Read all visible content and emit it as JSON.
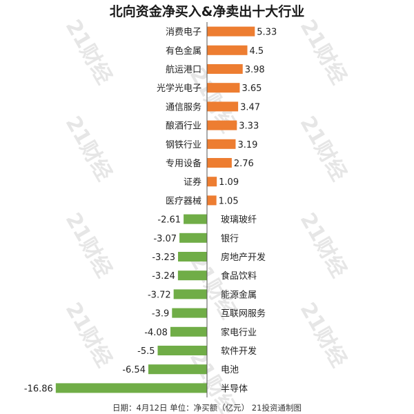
{
  "title": "北向资金净买入&净卖出十大行业",
  "watermark": "21财经",
  "footer": "日期：4月12日 单位：净买额（亿元） 21投资通制图",
  "colors": {
    "positive": "#ED7D31",
    "negative": "#70AD47",
    "axis": "#555555"
  },
  "chart_data": {
    "type": "bar",
    "orientation": "horizontal",
    "title": "北向资金净买入&净卖出十大行业",
    "categories": [
      "消费电子",
      "有色金属",
      "航运港口",
      "光学光电子",
      "通信服务",
      "酿酒行业",
      "钢铁行业",
      "专用设备",
      "证券",
      "医疗器械",
      "玻璃玻纤",
      "银行",
      "房地产开发",
      "食品饮料",
      "能源金属",
      "互联网服务",
      "家电行业",
      "软件开发",
      "电池",
      "半导体"
    ],
    "values": [
      5.33,
      4.5,
      3.98,
      3.65,
      3.47,
      3.33,
      3.19,
      2.76,
      1.09,
      1.05,
      -2.61,
      -3.07,
      -3.23,
      -3.24,
      -3.72,
      -3.9,
      -4.08,
      -5.5,
      -6.54,
      -16.86
    ],
    "value_labels": [
      "5.33",
      "4.5",
      "3.98",
      "3.65",
      "3.47",
      "3.33",
      "3.19",
      "2.76",
      "1.09",
      "1.05",
      "-2.61",
      "-3.07",
      "-3.23",
      "-3.24",
      "-3.72",
      "-3.9",
      "-4.08",
      "-5.5",
      "-6.54",
      "-16.86"
    ],
    "unit": "亿元",
    "grid": false,
    "legend": "none"
  }
}
